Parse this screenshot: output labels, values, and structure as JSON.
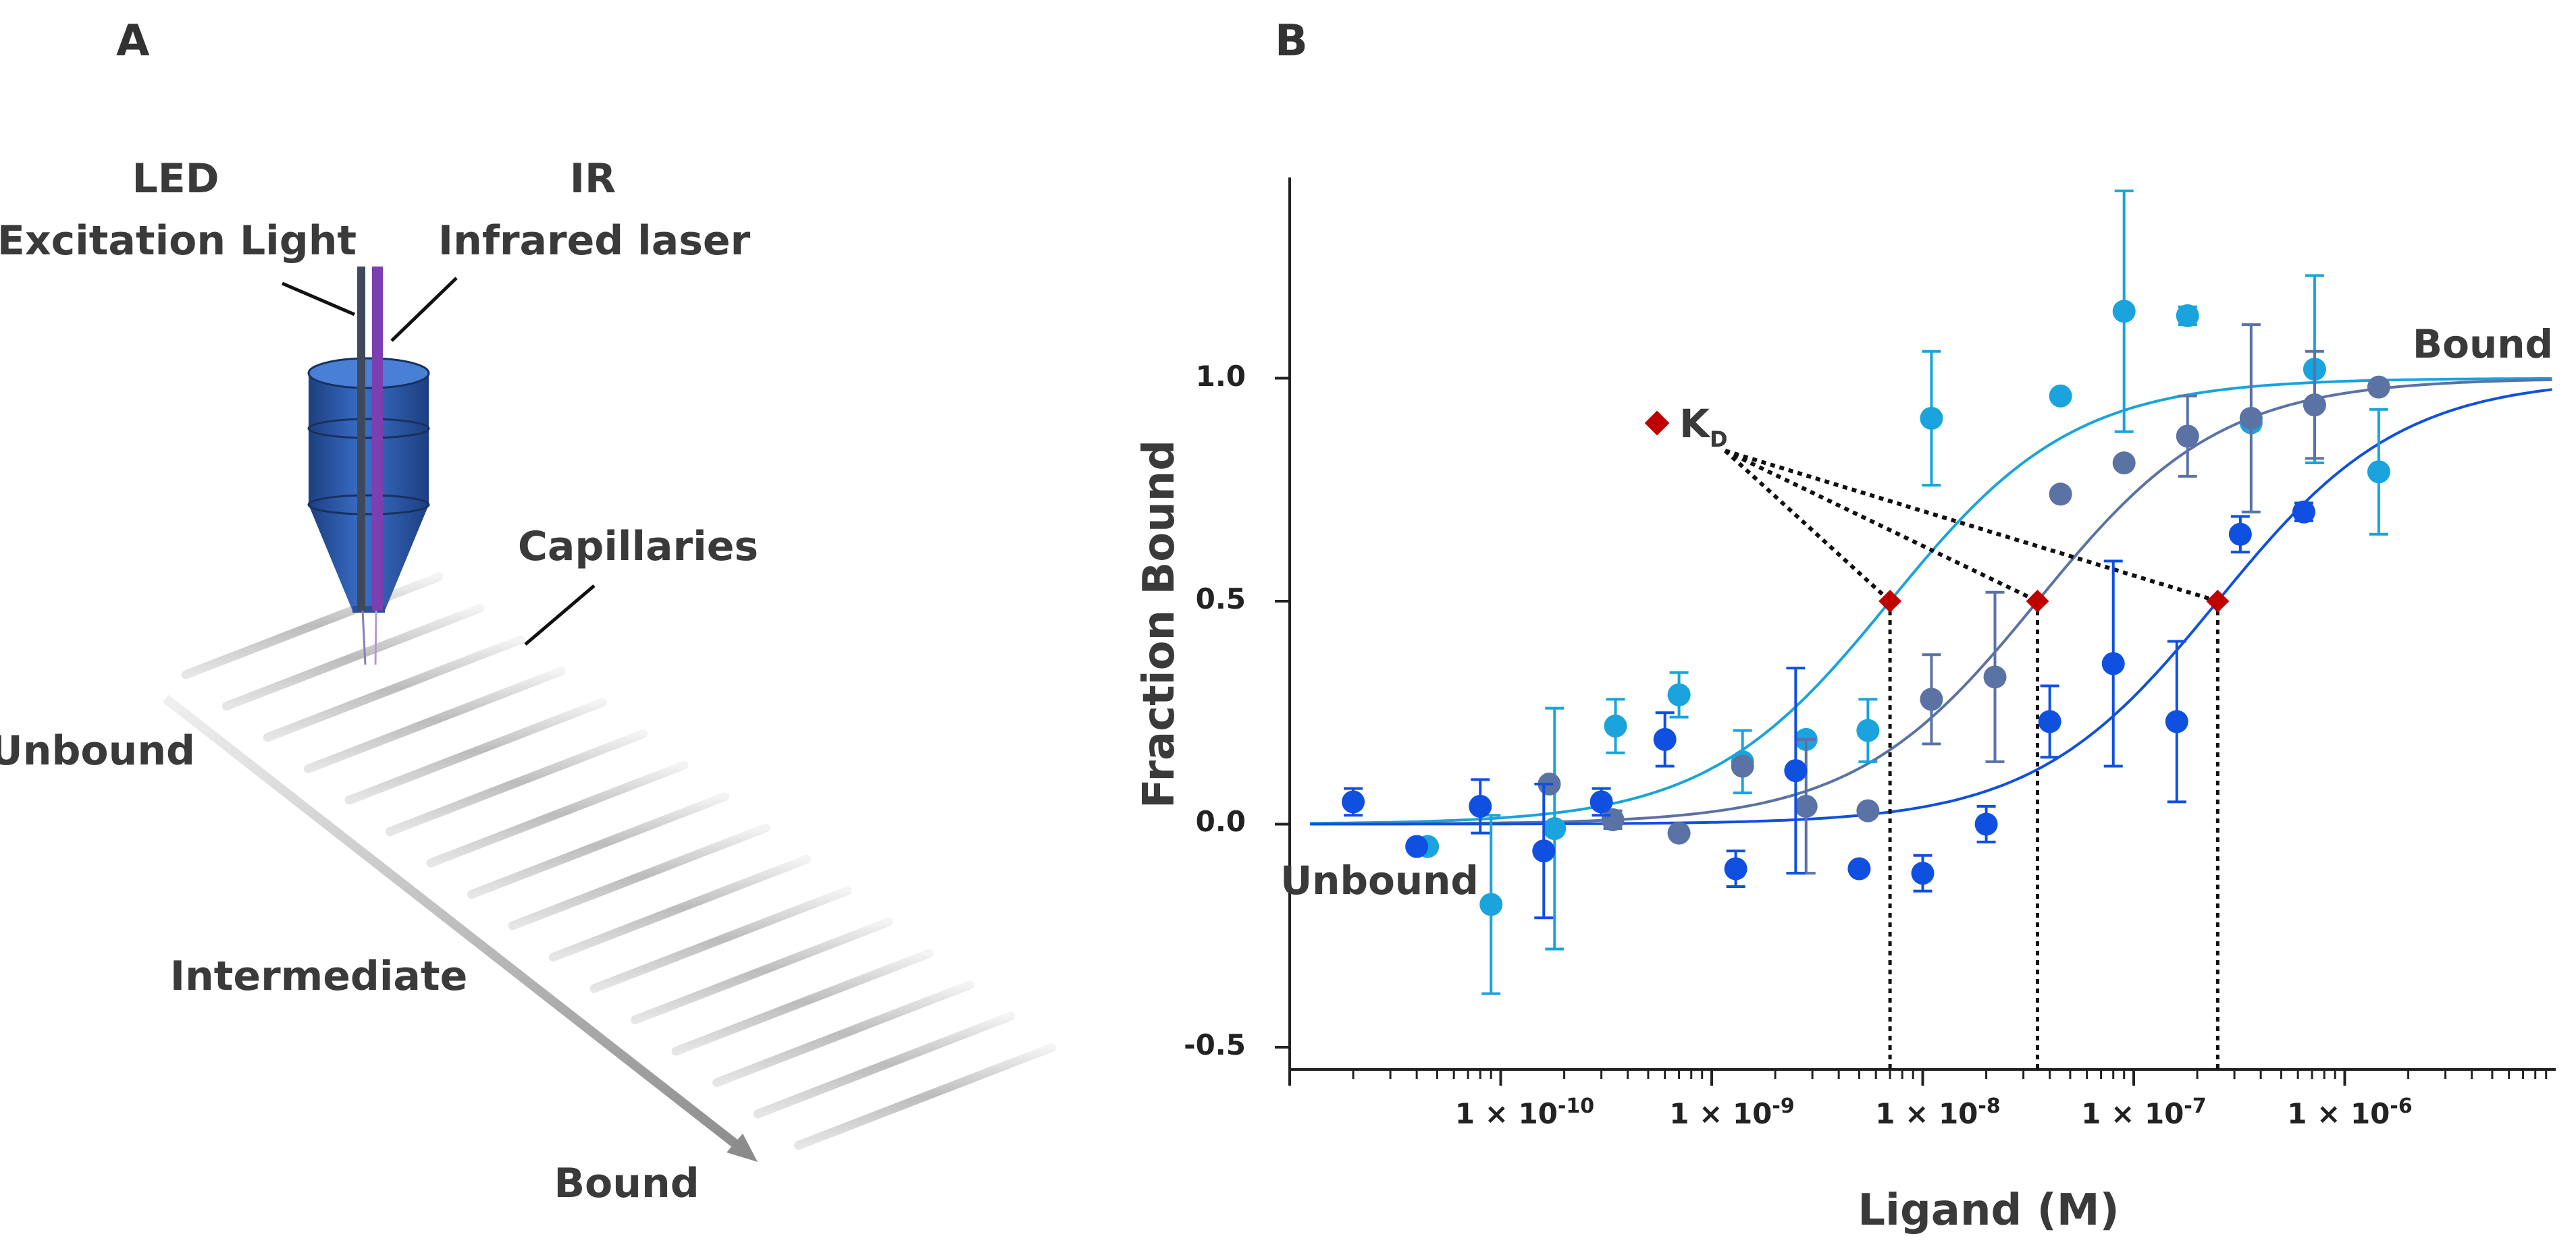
{
  "panel_a": {
    "letter": "A",
    "led_line1": "LED",
    "led_line2": "Excitation Light",
    "ir_line1": "IR",
    "ir_line2": "Infrared laser",
    "capillaries": "Capillaries",
    "unbound": "Unbound",
    "intermediate": "Intermediate",
    "bound": "Bound",
    "colors": {
      "objective": "#2f5fb3",
      "led_fiber": "#3e4a5c",
      "ir_fiber": "#7b3fb0",
      "capillary": "#b8b8b8"
    }
  },
  "panel_b": {
    "letter": "B"
  },
  "chart_data": {
    "type": "scatter",
    "x_scale": "log",
    "xlabel": "Ligand (M)",
    "ylabel": "Fraction Bound",
    "xlim": [
      1e-11,
      1e-05
    ],
    "ylim": [
      -0.55,
      1.45
    ],
    "y_ticks": [
      "1.0",
      "0.5",
      "0.0",
      "-0.5"
    ],
    "y_tick_values": [
      1.0,
      0.5,
      0.0,
      -0.5
    ],
    "x_tick_labels": [
      {
        "base": "1 × 10",
        "exp": "-10"
      },
      {
        "base": "1 × 10",
        "exp": "-9"
      },
      {
        "base": "1 × 10",
        "exp": "-8"
      },
      {
        "base": "1 × 10",
        "exp": "-7"
      },
      {
        "base": "1 × 10",
        "exp": "-6"
      }
    ],
    "x_tick_values": [
      1e-10,
      1e-09,
      1e-08,
      1e-07,
      1e-06
    ],
    "annotations": {
      "bound": "Bound",
      "unbound": "Unbound",
      "kd_base": "K",
      "kd_sub": "D",
      "kd_marker_color": "#c00000"
    },
    "kd_values": [
      7e-09,
      3.5e-08,
      2.5e-07
    ],
    "series": [
      {
        "color": "#1aa3dc",
        "kd": 7e-09,
        "points": [
          {
            "x": 4.5e-11,
            "y": -0.05,
            "err": 0.0
          },
          {
            "x": 9e-11,
            "y": -0.18,
            "err": 0.2
          },
          {
            "x": 1.8e-10,
            "y": -0.01,
            "err": 0.27
          },
          {
            "x": 3.5e-10,
            "y": 0.22,
            "err": 0.06
          },
          {
            "x": 7e-10,
            "y": 0.29,
            "err": 0.05
          },
          {
            "x": 1.4e-09,
            "y": 0.14,
            "err": 0.07
          },
          {
            "x": 2.8e-09,
            "y": 0.19,
            "err": 0.0
          },
          {
            "x": 5.5e-09,
            "y": 0.21,
            "err": 0.07
          },
          {
            "x": 1.1e-08,
            "y": 0.91,
            "err": 0.15
          },
          {
            "x": 4.5e-08,
            "y": 0.96,
            "err": 0.0
          },
          {
            "x": 9e-08,
            "y": 1.15,
            "err": 0.27
          },
          {
            "x": 1.8e-07,
            "y": 1.14,
            "err": 0.02
          },
          {
            "x": 3.6e-07,
            "y": 0.9,
            "err": 0.0
          },
          {
            "x": 7.2e-07,
            "y": 1.02,
            "err": 0.21
          },
          {
            "x": 1.45e-06,
            "y": 0.79,
            "err": 0.14
          }
        ]
      },
      {
        "color": "#5a72a4",
        "kd": 3.5e-08,
        "points": [
          {
            "x": 1.7e-10,
            "y": 0.09,
            "err": 0.0
          },
          {
            "x": 3.4e-10,
            "y": 0.01,
            "err": 0.02
          },
          {
            "x": 7e-10,
            "y": -0.02,
            "err": 0.0
          },
          {
            "x": 1.4e-09,
            "y": 0.13,
            "err": 0.0
          },
          {
            "x": 2.8e-09,
            "y": 0.04,
            "err": 0.15
          },
          {
            "x": 5.5e-09,
            "y": 0.03,
            "err": 0.0
          },
          {
            "x": 1.1e-08,
            "y": 0.28,
            "err": 0.1
          },
          {
            "x": 2.2e-08,
            "y": 0.33,
            "err": 0.19
          },
          {
            "x": 4.5e-08,
            "y": 0.74,
            "err": 0.0
          },
          {
            "x": 9e-08,
            "y": 0.81,
            "err": 0.0
          },
          {
            "x": 1.8e-07,
            "y": 0.87,
            "err": 0.09
          },
          {
            "x": 3.6e-07,
            "y": 0.91,
            "err": 0.21
          },
          {
            "x": 7.2e-07,
            "y": 0.94,
            "err": 0.12
          },
          {
            "x": 1.45e-06,
            "y": 0.98,
            "err": 0.0
          }
        ]
      },
      {
        "color": "#1050e0",
        "kd": 2.5e-07,
        "points": [
          {
            "x": 2e-11,
            "y": 0.05,
            "err": 0.03
          },
          {
            "x": 4e-11,
            "y": -0.05,
            "err": 0.0
          },
          {
            "x": 8e-11,
            "y": 0.04,
            "err": 0.06
          },
          {
            "x": 1.6e-10,
            "y": -0.06,
            "err": 0.15
          },
          {
            "x": 3e-10,
            "y": 0.05,
            "err": 0.03
          },
          {
            "x": 6e-10,
            "y": 0.19,
            "err": 0.06
          },
          {
            "x": 1.3e-09,
            "y": -0.1,
            "err": 0.04
          },
          {
            "x": 2.5e-09,
            "y": 0.12,
            "err": 0.23
          },
          {
            "x": 5e-09,
            "y": -0.1,
            "err": 0.0
          },
          {
            "x": 1e-08,
            "y": -0.11,
            "err": 0.04
          },
          {
            "x": 2e-08,
            "y": 0.0,
            "err": 0.04
          },
          {
            "x": 4e-08,
            "y": 0.23,
            "err": 0.08
          },
          {
            "x": 8e-08,
            "y": 0.36,
            "err": 0.23
          },
          {
            "x": 1.6e-07,
            "y": 0.23,
            "err": 0.18
          },
          {
            "x": 3.2e-07,
            "y": 0.65,
            "err": 0.04
          },
          {
            "x": 6.4e-07,
            "y": 0.7,
            "err": 0.02
          }
        ]
      }
    ]
  }
}
